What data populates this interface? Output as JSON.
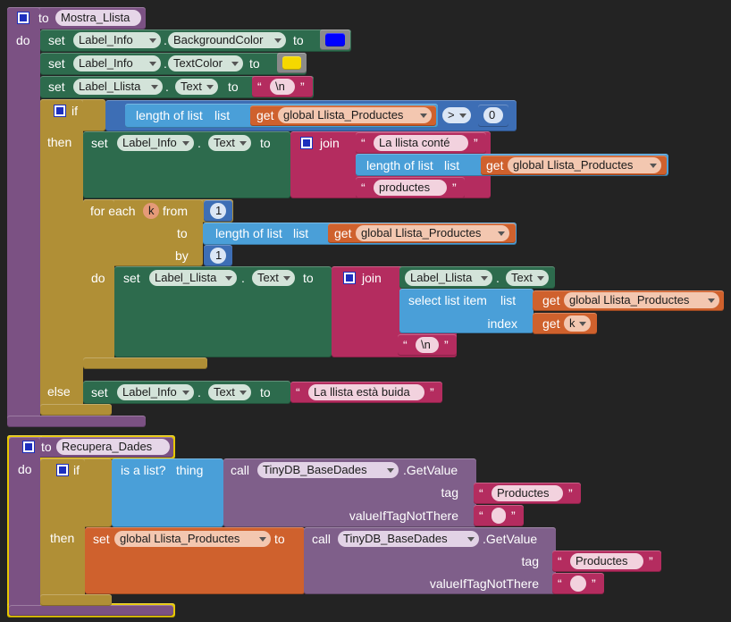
{
  "string_quotes": {
    "open": "“",
    "close": "”"
  },
  "procedures": [
    {
      "to": "to",
      "name": "Mostra_Llista",
      "do": "do",
      "body": [
        {
          "set": "set",
          "component": "Label_Info",
          "dot": ".",
          "property": "BackgroundColor",
          "to": "to"
        },
        {
          "set": "set",
          "component": "Label_Info",
          "dot": ".",
          "property": "TextColor",
          "to": "to"
        },
        {
          "set": "set",
          "component": "Label_Llista",
          "dot": ".",
          "property": "Text",
          "to": "to",
          "value": "\\n"
        },
        {
          "if": "if",
          "then": "then",
          "else": "else",
          "condition": {
            "length_of_list": "length of list",
            "list": "list",
            "get": "get",
            "variable": "global Llista_Productes",
            "operator": ">",
            "number": 0
          },
          "then_body": [
            {
              "set": "set",
              "component": "Label_Info",
              "dot": ".",
              "property": "Text",
              "to": "to",
              "join": "join",
              "items": [
                {
                  "text": "La llista conté"
                },
                {
                  "length_of_list": "length of list",
                  "list": "list",
                  "get": "get",
                  "variable": "global Llista_Productes"
                },
                {
                  "text": "productes"
                }
              ]
            },
            {
              "for_each": "for each",
              "variable": "k",
              "from": "from",
              "from_value": 1,
              "to": "to",
              "to_value": {
                "length_of_list": "length of list",
                "list": "list",
                "get": "get",
                "variable": "global Llista_Productes"
              },
              "by": "by",
              "by_value": 1,
              "do": "do",
              "body": [
                {
                  "set": "set",
                  "component": "Label_Llista",
                  "dot": ".",
                  "property": "Text",
                  "to": "to",
                  "join": "join",
                  "items": [
                    {
                      "component": "Label_Llista",
                      "dot": ".",
                      "property": "Text"
                    },
                    {
                      "select_list_item": "select list item",
                      "list": "list",
                      "get": "get",
                      "variable": "global Llista_Productes",
                      "index": "index",
                      "index_get": "get",
                      "index_variable": "k"
                    },
                    {
                      "text": "\\n"
                    }
                  ]
                }
              ]
            }
          ],
          "else_body": [
            {
              "set": "set",
              "component": "Label_Info",
              "dot": ".",
              "property": "Text",
              "to": "to",
              "value": "La llista està buida"
            }
          ]
        }
      ]
    },
    {
      "to": "to",
      "name": "Recupera_Dades",
      "do": "do",
      "body": [
        {
          "if": "if",
          "then": "then",
          "condition": {
            "is_a_list": "is a list?",
            "thing": "thing",
            "call": "call",
            "component": "TinyDB_BaseDades",
            "method": ".GetValue",
            "tag": "tag",
            "tag_value": "Productes",
            "default": "valueIfTagNotThere"
          },
          "then_body": [
            {
              "set": "set",
              "variable": "global Llista_Productes",
              "to": "to",
              "call": "call",
              "component": "TinyDB_BaseDades",
              "method": ".GetValue",
              "tag": "tag",
              "tag_value": "Productes",
              "default": "valueIfTagNotThere"
            }
          ]
        }
      ]
    }
  ]
}
